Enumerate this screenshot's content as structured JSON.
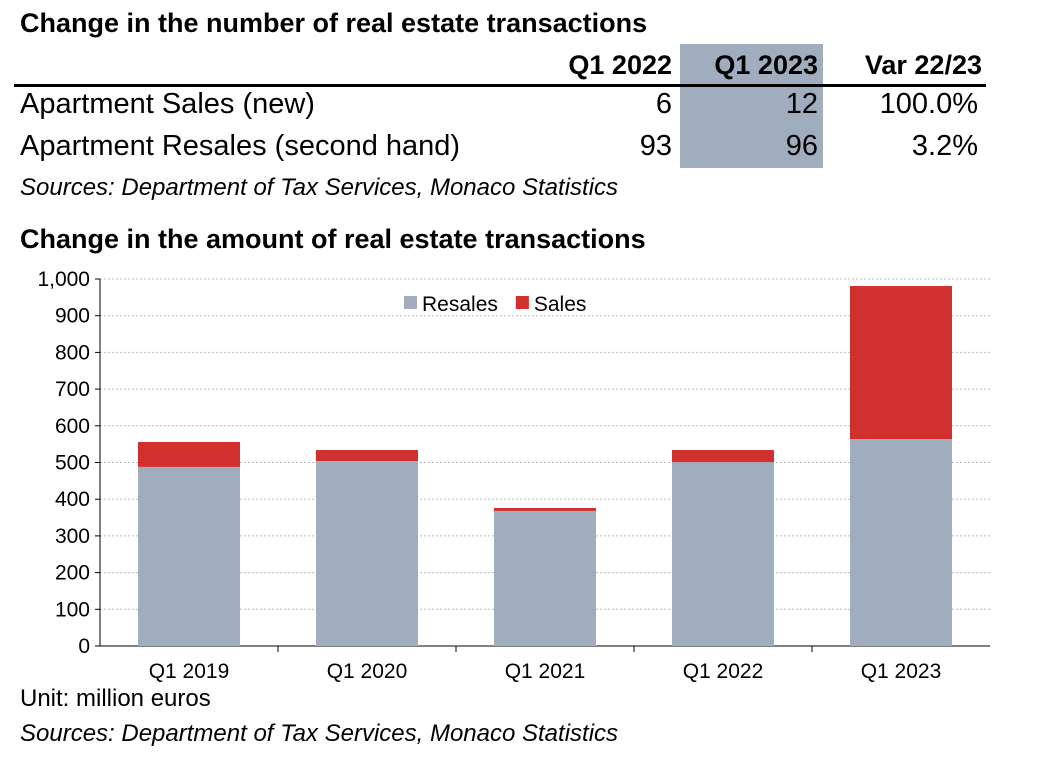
{
  "table": {
    "title": "Change in the number of real estate transactions",
    "columns": [
      "Q1 2022",
      "Q1 2023",
      "Var 22/23"
    ],
    "rows": [
      {
        "label": "Apartment Sales (new)",
        "values": [
          "6",
          "12",
          "100.0%"
        ]
      },
      {
        "label": "Apartment Resales (second hand)",
        "values": [
          "93",
          "96",
          "3.2%"
        ]
      }
    ],
    "source": "Sources: Department of Tax Services, Monaco Statistics",
    "highlight_color": "#a0adbe"
  },
  "chart_data": {
    "type": "bar",
    "stacked": true,
    "title": "Change in the amount of real estate transactions",
    "categories": [
      "Q1 2019",
      "Q1 2020",
      "Q1 2021",
      "Q1 2022",
      "Q1 2023"
    ],
    "series": [
      {
        "name": "Resales",
        "color": "#a0adbe",
        "values": [
          488,
          504,
          368,
          501,
          564
        ]
      },
      {
        "name": "Sales",
        "color": "#d0302e",
        "values": [
          68,
          30,
          8,
          33,
          417
        ]
      }
    ],
    "ylim": [
      0,
      1000
    ],
    "yticks": [
      "0",
      "100",
      "200",
      "300",
      "400",
      "500",
      "600",
      "700",
      "800",
      "900",
      "1,000"
    ],
    "grid": true,
    "legend": "top-center",
    "unit": "Unit: million euros",
    "source": "Sources: Department of Tax Services, Monaco Statistics"
  }
}
